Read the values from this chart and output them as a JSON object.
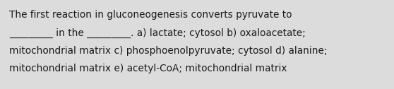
{
  "background_color": "#dcdcdc",
  "text_color": "#1a1a1a",
  "font_size": 9.8,
  "line1": "The first reaction in gluconeogenesis converts pyruvate to",
  "line2": "_________ in the _________. a) lactate; cytosol b) oxaloacetate;",
  "line3": "mitochondrial matrix c) phosphoenolpyruvate; cytosol d) alanine;",
  "line4": "mitochondrial matrix e) acetyl-CoA; mitochondrial matrix",
  "figwidth": 5.58,
  "figheight": 1.26,
  "dpi": 100
}
